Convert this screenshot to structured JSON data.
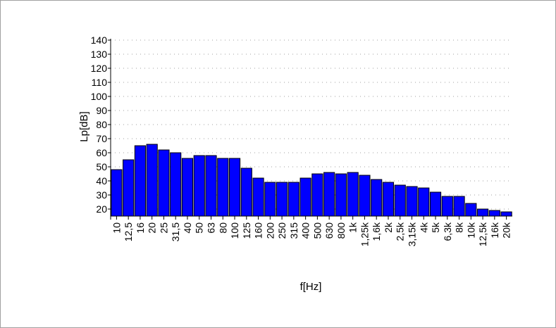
{
  "chart_data": {
    "type": "bar",
    "xlabel": "f[Hz]",
    "ylabel": "Lp[dB]",
    "ylim": [
      15,
      140
    ],
    "yticks": [
      20,
      30,
      40,
      50,
      60,
      70,
      80,
      90,
      100,
      110,
      120,
      130,
      140
    ],
    "grid": true,
    "categories": [
      "10",
      "12,5",
      "16",
      "20",
      "25",
      "31,5",
      "40",
      "50",
      "63",
      "80",
      "100",
      "125",
      "160",
      "200",
      "250",
      "315",
      "400",
      "500",
      "630",
      "800",
      "1k",
      "1,25k",
      "1,6k",
      "2k",
      "2,5k",
      "3,15k",
      "4k",
      "5k",
      "6,3k",
      "8k",
      "10k",
      "12,5k",
      "16k",
      "20k"
    ],
    "values": [
      48,
      55,
      65,
      66,
      62,
      60,
      56,
      58,
      58,
      56,
      56,
      49,
      42,
      39,
      39,
      39,
      42,
      45,
      46,
      45,
      46,
      44,
      41,
      39,
      37,
      36,
      35,
      32,
      29,
      29,
      24,
      20,
      19,
      18
    ],
    "bar_color": "#0000ff",
    "bar_edge_color": "#000000",
    "grid_color": "#a0a0a0"
  }
}
